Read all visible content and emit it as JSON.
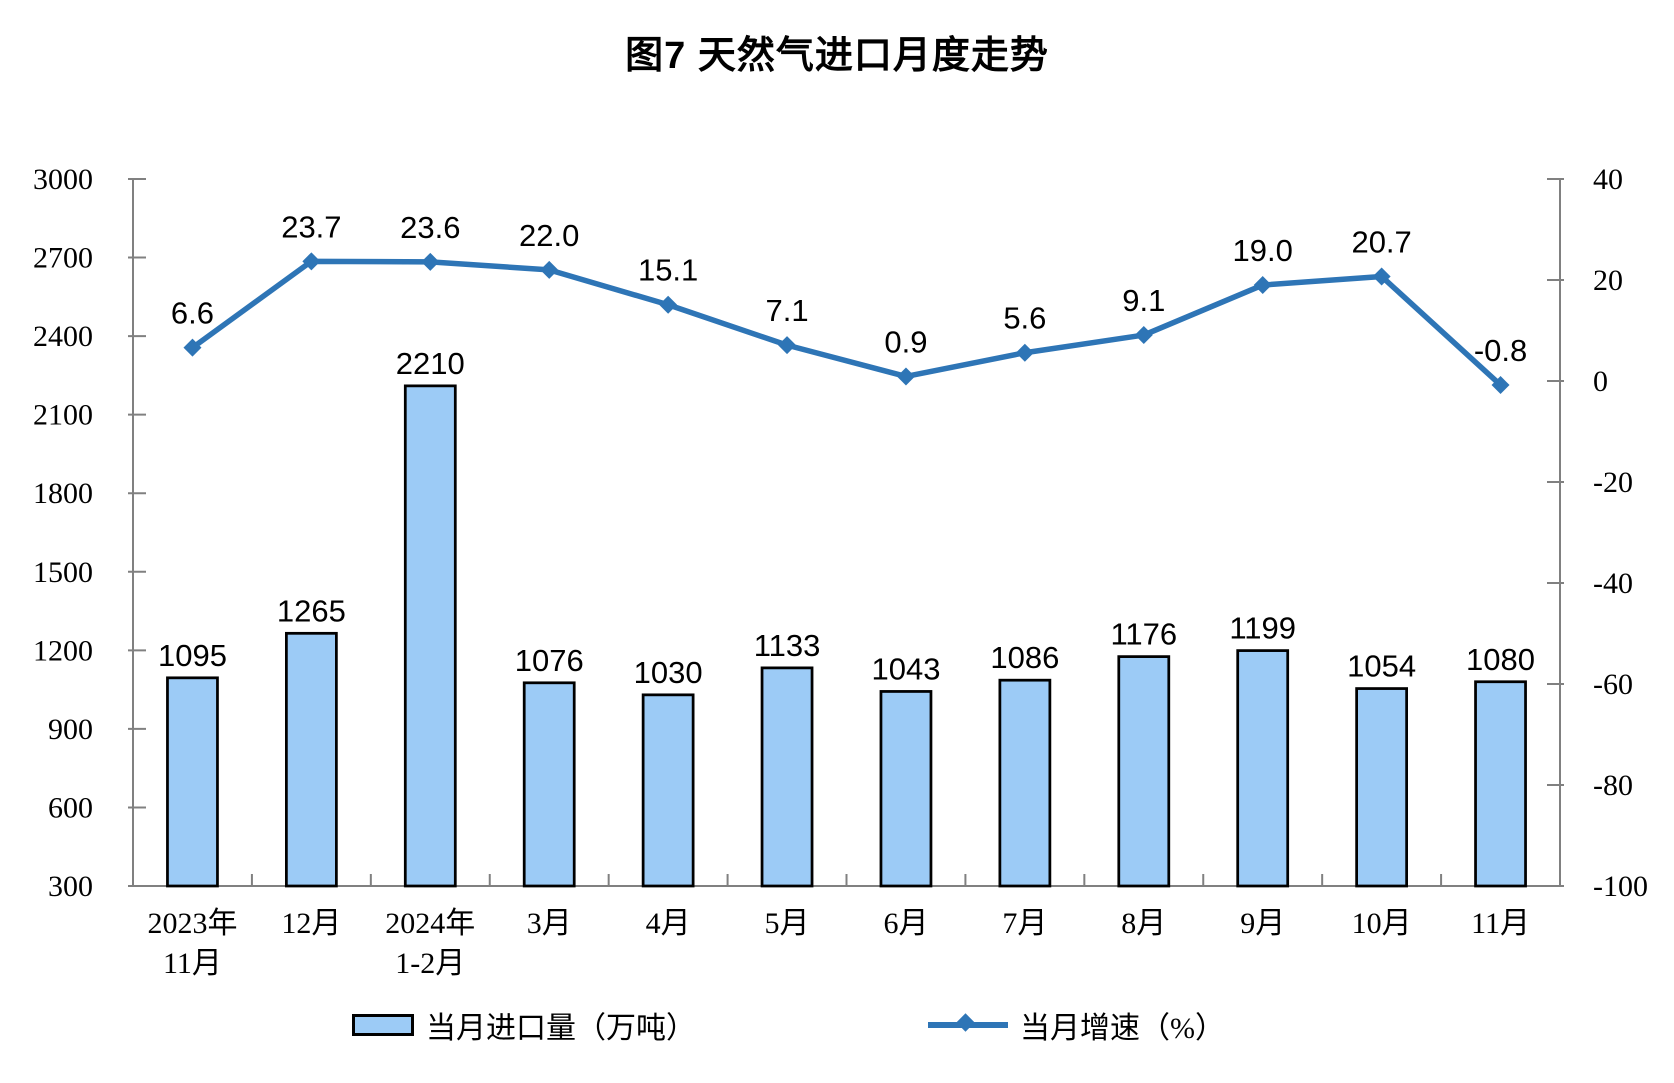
{
  "title": "图7 天然气进口月度走势",
  "chart_data": {
    "type": "combo-bar-line",
    "title": "图7 天然气进口月度走势",
    "categories": [
      "2023年\n11月",
      "12月",
      "2024年\n1-2月",
      "3月",
      "4月",
      "5月",
      "6月",
      "7月",
      "8月",
      "9月",
      "10月",
      "11月"
    ],
    "series": [
      {
        "name": "当月进口量（万吨）",
        "type": "bar",
        "axis": "left",
        "values": [
          1095,
          1265,
          2210,
          1076,
          1030,
          1133,
          1043,
          1086,
          1176,
          1199,
          1054,
          1080
        ],
        "labels": [
          "1095",
          "1265",
          "2210",
          "1076",
          "1030",
          "1133",
          "1043",
          "1086",
          "1176",
          "1199",
          "1054",
          "1080"
        ]
      },
      {
        "name": "当月增速（%）",
        "type": "line",
        "axis": "right",
        "marker": "diamond",
        "values": [
          6.6,
          23.7,
          23.6,
          22.0,
          15.1,
          7.1,
          0.9,
          5.6,
          9.1,
          19.0,
          20.7,
          -0.8
        ],
        "labels": [
          "6.6",
          "23.7",
          "23.6",
          "22.0",
          "15.1",
          "7.1",
          "0.9",
          "5.6",
          "9.1",
          "19.0",
          "20.7",
          "-0.8"
        ]
      }
    ],
    "axes": {
      "left": {
        "min": 300,
        "max": 3000,
        "step": 300,
        "ticks": [
          "300",
          "600",
          "900",
          "1200",
          "1500",
          "1800",
          "2100",
          "2400",
          "2700",
          "3000"
        ]
      },
      "right": {
        "min": -100,
        "max": 40,
        "step": 20,
        "ticks": [
          "-100",
          "-80",
          "-60",
          "-40",
          "-20",
          "0",
          "20",
          "40"
        ]
      }
    },
    "grid": false,
    "legend": {
      "position": "bottom",
      "items": [
        {
          "label": "当月进口量（万吨）",
          "type": "bar"
        },
        {
          "label": "当月增速（%）",
          "type": "line"
        }
      ]
    },
    "colors": {
      "bar_fill": "#9CCBF6",
      "bar_stroke": "#000000",
      "line": "#2E75B6",
      "axis": "#808080",
      "text": "#000000"
    }
  }
}
